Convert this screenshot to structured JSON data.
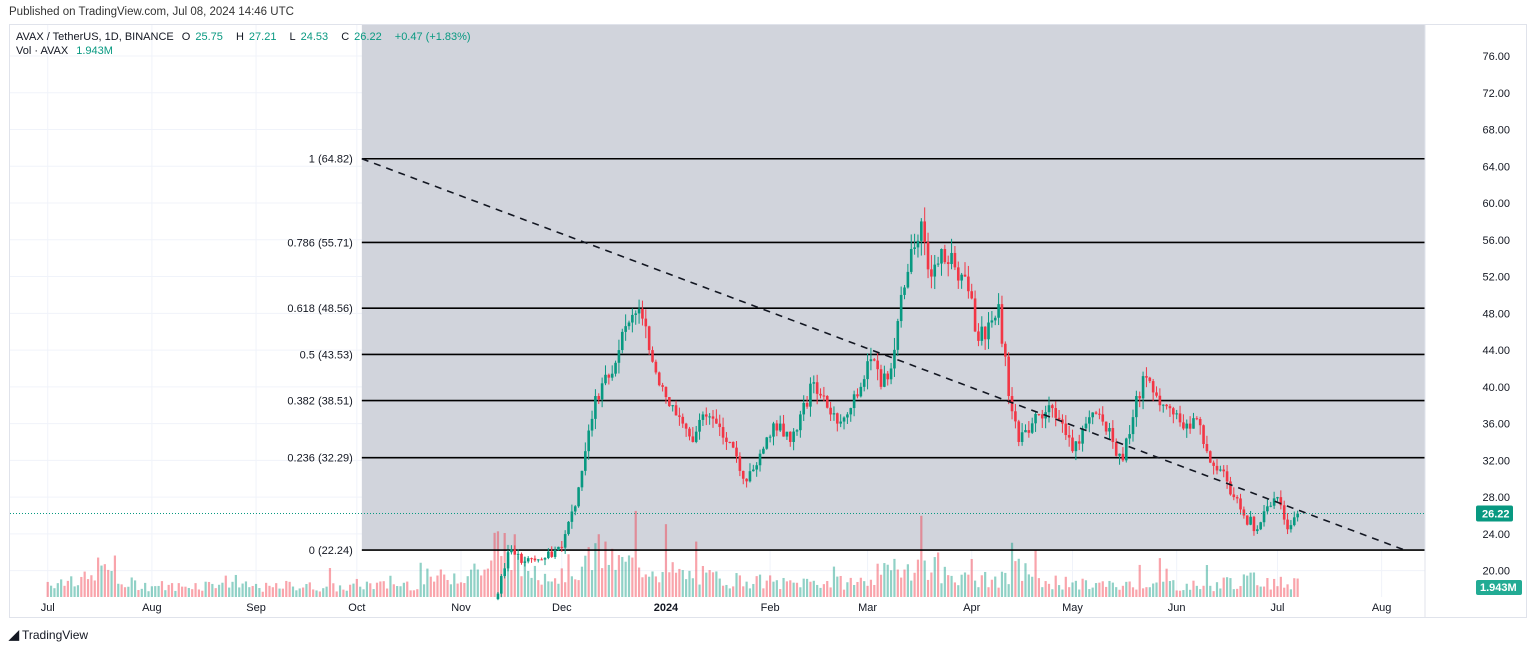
{
  "published": "Published on TradingView.com, Jul 08, 2024 14:46 UTC",
  "legend": {
    "symbol": "AVAX / TetherUS, 1D, BINANCE",
    "open_label": "O",
    "open": "25.75",
    "high_label": "H",
    "high": "27.21",
    "low_label": "L",
    "low": "24.53",
    "close_label": "C",
    "close": "26.22",
    "change": "+0.47 (+1.83%)",
    "vol_label": "Vol · AVAX",
    "vol_value": "1.943M"
  },
  "footer": {
    "brand": "TradingView",
    "logo_text": "17"
  },
  "colors": {
    "up": "#089981",
    "down": "#f23645",
    "fib_zone": "#d1d4dc",
    "fib_line": "#000000",
    "last_price": "#089981"
  },
  "chart_data": {
    "type": "candlestick",
    "symbol": "AVAX/USDT",
    "interval": "1D",
    "y_ticks": [
      "76.00",
      "72.00",
      "68.00",
      "64.00",
      "60.00",
      "56.00",
      "52.00",
      "48.00",
      "44.00",
      "40.00",
      "36.00",
      "32.00",
      "28.00",
      "24.00",
      "20.00"
    ],
    "ylim": [
      20,
      76
    ],
    "x_ticks": [
      {
        "label": "Jul",
        "date": "2023-07-01"
      },
      {
        "label": "Aug",
        "date": "2023-08-01"
      },
      {
        "label": "Sep",
        "date": "2023-09-01"
      },
      {
        "label": "Oct",
        "date": "2023-10-01"
      },
      {
        "label": "Nov",
        "date": "2023-11-01"
      },
      {
        "label": "Dec",
        "date": "2023-12-01"
      },
      {
        "label": "2024",
        "date": "2024-01-01"
      },
      {
        "label": "Feb",
        "date": "2024-02-01"
      },
      {
        "label": "Mar",
        "date": "2024-03-01"
      },
      {
        "label": "Apr",
        "date": "2024-04-01"
      },
      {
        "label": "May",
        "date": "2024-05-01"
      },
      {
        "label": "Jun",
        "date": "2024-06-01"
      },
      {
        "label": "Jul",
        "date": "2024-07-01"
      },
      {
        "label": "Aug",
        "date": "2024-08-01"
      }
    ],
    "last_price": "26.22",
    "last_volume": "1.943M",
    "fib_retracement": {
      "start_date": "2023-10-01",
      "end_date": "2024-08-12",
      "levels": [
        {
          "label": "1 (64.82)",
          "value": 64.82
        },
        {
          "label": "0.786 (55.71)",
          "value": 55.71
        },
        {
          "label": "0.618 (48.56)",
          "value": 48.56
        },
        {
          "label": "0.5 (43.53)",
          "value": 43.53
        },
        {
          "label": "0.382 (38.51)",
          "value": 38.51
        },
        {
          "label": "0.236 (32.29)",
          "value": 32.29
        },
        {
          "label": "0 (22.24)",
          "value": 22.24
        }
      ]
    },
    "trendline": {
      "from": {
        "date": "2023-10-01",
        "price": 64.82
      },
      "to": {
        "date": "2024-08-12",
        "price": 22.24
      },
      "style": "dashed"
    },
    "closes": [
      [
        "2023-11-12",
        17.5
      ],
      [
        "2023-11-15",
        22.0
      ],
      [
        "2023-11-20",
        21.0
      ],
      [
        "2023-11-25",
        21.2
      ],
      [
        "2023-12-01",
        22.5
      ],
      [
        "2023-12-05",
        27.0
      ],
      [
        "2023-12-08",
        33.0
      ],
      [
        "2023-12-11",
        39.0
      ],
      [
        "2023-12-15",
        41.0
      ],
      [
        "2023-12-18",
        44.0
      ],
      [
        "2023-12-21",
        47.0
      ],
      [
        "2023-12-24",
        48.5
      ],
      [
        "2023-12-27",
        44.0
      ],
      [
        "2023-12-31",
        40.0
      ],
      [
        "2024-01-03",
        38.0
      ],
      [
        "2024-01-06",
        36.0
      ],
      [
        "2024-01-09",
        34.0
      ],
      [
        "2024-01-12",
        37.0
      ],
      [
        "2024-01-16",
        36.0
      ],
      [
        "2024-01-20",
        34.0
      ],
      [
        "2024-01-24",
        30.0
      ],
      [
        "2024-01-27",
        31.0
      ],
      [
        "2024-01-31",
        34.5
      ],
      [
        "2024-02-04",
        36.0
      ],
      [
        "2024-02-07",
        34.0
      ],
      [
        "2024-02-10",
        37.0
      ],
      [
        "2024-02-14",
        40.5
      ],
      [
        "2024-02-17",
        39.0
      ],
      [
        "2024-02-21",
        36.0
      ],
      [
        "2024-02-24",
        37.0
      ],
      [
        "2024-02-28",
        40.0
      ],
      [
        "2024-03-02",
        43.0
      ],
      [
        "2024-03-05",
        40.0
      ],
      [
        "2024-03-08",
        42.0
      ],
      [
        "2024-03-11",
        50.0
      ],
      [
        "2024-03-14",
        55.0
      ],
      [
        "2024-03-17",
        58.0
      ],
      [
        "2024-03-20",
        52.0
      ],
      [
        "2024-03-23",
        55.0
      ],
      [
        "2024-03-27",
        53.0
      ],
      [
        "2024-03-30",
        52.0
      ],
      [
        "2024-04-03",
        45.0
      ],
      [
        "2024-04-06",
        47.0
      ],
      [
        "2024-04-09",
        49.0
      ],
      [
        "2024-04-12",
        39.0
      ],
      [
        "2024-04-15",
        34.0
      ],
      [
        "2024-04-18",
        35.0
      ],
      [
        "2024-04-21",
        37.0
      ],
      [
        "2024-04-24",
        38.0
      ],
      [
        "2024-04-28",
        36.0
      ],
      [
        "2024-05-01",
        33.0
      ],
      [
        "2024-05-05",
        36.0
      ],
      [
        "2024-05-09",
        37.0
      ],
      [
        "2024-05-13",
        34.0
      ],
      [
        "2024-05-16",
        32.0
      ],
      [
        "2024-05-20",
        39.0
      ],
      [
        "2024-05-23",
        41.0
      ],
      [
        "2024-05-27",
        38.0
      ],
      [
        "2024-05-31",
        37.0
      ],
      [
        "2024-06-04",
        36.0
      ],
      [
        "2024-06-07",
        36.5
      ],
      [
        "2024-06-10",
        33.0
      ],
      [
        "2024-06-14",
        31.0
      ],
      [
        "2024-06-18",
        28.0
      ],
      [
        "2024-06-21",
        26.0
      ],
      [
        "2024-06-25",
        24.5
      ],
      [
        "2024-06-28",
        27.0
      ],
      [
        "2024-07-01",
        28.0
      ],
      [
        "2024-07-04",
        24.5
      ],
      [
        "2024-07-06",
        25.8
      ],
      [
        "2024-07-07",
        26.22
      ]
    ],
    "weekly_volume_M": [
      [
        "2023-07-01",
        1.6
      ],
      [
        "2023-07-08",
        1.8
      ],
      [
        "2023-07-15",
        3.0
      ],
      [
        "2023-07-22",
        1.4
      ],
      [
        "2023-07-29",
        1.2
      ],
      [
        "2023-08-05",
        1.1
      ],
      [
        "2023-08-12",
        1.3
      ],
      [
        "2023-08-19",
        1.6
      ],
      [
        "2023-08-26",
        1.1
      ],
      [
        "2023-09-02",
        1.0
      ],
      [
        "2023-09-09",
        1.2
      ],
      [
        "2023-09-16",
        1.1
      ],
      [
        "2023-09-23",
        1.0
      ],
      [
        "2023-09-30",
        1.3
      ],
      [
        "2023-10-07",
        1.2
      ],
      [
        "2023-10-14",
        1.4
      ],
      [
        "2023-10-21",
        2.0
      ],
      [
        "2023-10-28",
        2.4
      ],
      [
        "2023-11-04",
        3.0
      ],
      [
        "2023-11-11",
        5.5
      ],
      [
        "2023-11-18",
        3.0
      ],
      [
        "2023-11-25",
        2.2
      ],
      [
        "2023-12-02",
        3.0
      ],
      [
        "2023-12-09",
        4.5
      ],
      [
        "2023-12-16",
        3.5
      ],
      [
        "2023-12-23",
        3.2
      ],
      [
        "2023-12-30",
        2.6
      ],
      [
        "2024-01-06",
        2.2
      ],
      [
        "2024-01-13",
        2.0
      ],
      [
        "2024-01-20",
        1.8
      ],
      [
        "2024-01-27",
        1.6
      ],
      [
        "2024-02-03",
        1.4
      ],
      [
        "2024-02-10",
        1.6
      ],
      [
        "2024-02-17",
        1.5
      ],
      [
        "2024-02-24",
        1.6
      ],
      [
        "2024-03-02",
        2.4
      ],
      [
        "2024-03-09",
        3.4
      ],
      [
        "2024-03-16",
        3.4
      ],
      [
        "2024-03-23",
        2.4
      ],
      [
        "2024-03-30",
        1.8
      ],
      [
        "2024-04-06",
        1.8
      ],
      [
        "2024-04-13",
        2.8
      ],
      [
        "2024-04-20",
        1.6
      ],
      [
        "2024-04-27",
        1.3
      ],
      [
        "2024-05-04",
        1.3
      ],
      [
        "2024-05-11",
        1.2
      ],
      [
        "2024-05-18",
        1.5
      ],
      [
        "2024-05-25",
        1.4
      ],
      [
        "2024-06-01",
        1.2
      ],
      [
        "2024-06-08",
        1.2
      ],
      [
        "2024-06-15",
        1.6
      ],
      [
        "2024-06-22",
        1.8
      ],
      [
        "2024-06-29",
        1.5
      ],
      [
        "2024-07-06",
        1.943
      ]
    ]
  }
}
